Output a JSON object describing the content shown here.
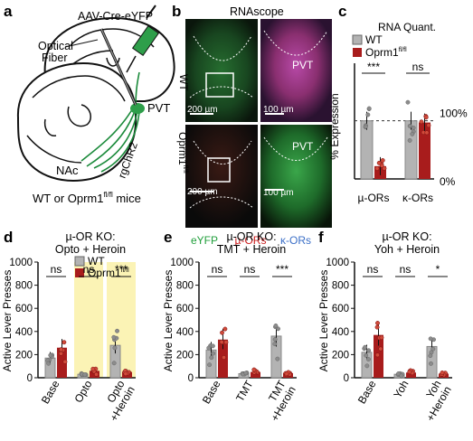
{
  "panel_letters": [
    "a",
    "b",
    "c",
    "d",
    "e",
    "f"
  ],
  "panel_a": {
    "virus_label": "AAV-Cre-eYFP",
    "fiber_label": "Optical\nFiber",
    "pvt_label": "PVT",
    "nac_label": "NAc",
    "axon_label": "rgChR2",
    "caption": "WT or Oprm1",
    "caption_sup": "fl/fl",
    "caption_tail": " mice",
    "colors": {
      "virus": "#2e9e4a",
      "axons": "#1a8a3a"
    }
  },
  "panel_b": {
    "title": "RNAscope",
    "row_labels": [
      "WT",
      "Oprm1"
    ],
    "row_label_sup": "fl/fl",
    "region_label": "PVT",
    "scale_labels": [
      "200 µm",
      "100 µm",
      "200 µm",
      "100 µm"
    ],
    "channel_legend": [
      {
        "text": "eYFP",
        "color": "#1f9e3a"
      },
      {
        "text": "µ-ORs",
        "color": "#cc1f1f"
      },
      {
        "text": "κ-ORs",
        "color": "#3b6fc7"
      }
    ]
  },
  "chart_data": [
    {
      "panel": "c",
      "type": "bar",
      "title": "RNA Quant.",
      "ylabel": "% Expression",
      "categories": [
        "µ-ORs",
        "κ-ORs"
      ],
      "series": [
        {
          "name": "WT",
          "color": "#b3b3b3",
          "values": [
            100,
            100
          ]
        },
        {
          "name": "Oprm1",
          "name_sup": "fl/fl",
          "color": "#a81c1c",
          "values": [
            22,
            97
          ]
        }
      ],
      "reference_lines": [
        {
          "y": 100,
          "label": "100%"
        }
      ],
      "zero_label": "0%",
      "ylim": [
        0,
        230
      ],
      "significance": [
        "***",
        "ns"
      ]
    },
    {
      "panel": "d",
      "type": "bar",
      "title": "µ-OR KO:",
      "subtitle": "Opto + Heroin",
      "ylabel": "Active Lever Presses",
      "yticks": [
        0,
        200,
        400,
        600,
        800,
        1000
      ],
      "ylim": [
        0,
        1000
      ],
      "categories": [
        "Base",
        "Opto",
        "Opto\n+Heroin"
      ],
      "highlight_categories": [
        "Opto",
        "Opto\n+Heroin"
      ],
      "series": [
        {
          "name": "WT",
          "color": "#b3b3b3",
          "values": [
            170,
            30,
            280
          ]
        },
        {
          "name": "Oprm1",
          "name_sup": "fl/fl",
          "color": "#a81c1c",
          "values": [
            260,
            60,
            50
          ]
        }
      ],
      "significance": [
        "ns",
        "ns",
        "***"
      ],
      "legend": "top-right"
    },
    {
      "panel": "e",
      "type": "bar",
      "title": "µ-OR KO:",
      "subtitle": "TMT + Heroin",
      "ylabel": "Active Lever Presses",
      "yticks": [
        0,
        200,
        400,
        600,
        800,
        1000
      ],
      "ylim": [
        0,
        1000
      ],
      "categories": [
        "Base",
        "TMT",
        "TMT\n+Heroin"
      ],
      "series": [
        {
          "name": "WT",
          "color": "#b3b3b3",
          "values": [
            240,
            35,
            360
          ]
        },
        {
          "name": "Oprm1",
          "name_sup": "fl/fl",
          "color": "#a81c1c",
          "values": [
            330,
            50,
            40
          ]
        }
      ],
      "significance": [
        "ns",
        "ns",
        "***"
      ]
    },
    {
      "panel": "f",
      "type": "bar",
      "title": "µ-OR KO:",
      "subtitle": "Yoh + Heroin",
      "ylabel": "Active Lever Presses",
      "yticks": [
        0,
        200,
        400,
        600,
        800,
        1000
      ],
      "ylim": [
        0,
        1000
      ],
      "categories": [
        "Base",
        "Yoh",
        "Yoh\n+Heroin"
      ],
      "series": [
        {
          "name": "WT",
          "color": "#b3b3b3",
          "values": [
            220,
            30,
            270
          ]
        },
        {
          "name": "Oprm1",
          "name_sup": "fl/fl",
          "color": "#a81c1c",
          "values": [
            370,
            45,
            35
          ]
        }
      ],
      "significance": [
        "ns",
        "ns",
        "*"
      ]
    }
  ]
}
